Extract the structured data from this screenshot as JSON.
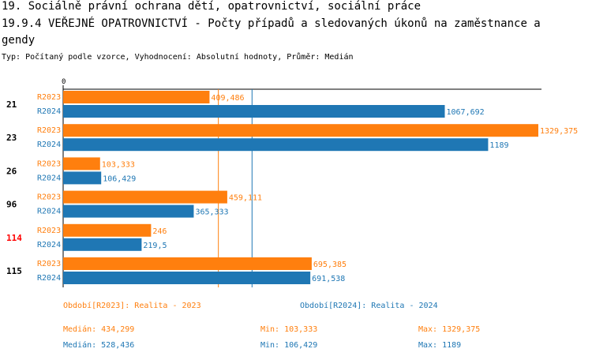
{
  "header": {
    "line1": "19. Sociálně právní ochrana dětí, opatrovnictví, sociální práce",
    "line2": "19.9.4 VEŘEJNÉ OPATROVNICTVÍ - Počty případů a sledovaných úkonů na zaměstnance a",
    "line3": "gendy",
    "subtitle": "Typ: Počítaný podle vzorce, Vyhodnocení: Absolutní hodnoty, Průměr: Medián"
  },
  "colors": {
    "R2023": "#ff7f0e",
    "R2024": "#1f77b4",
    "highlight": "#ff0000"
  },
  "chart_data": {
    "type": "bar",
    "orientation": "horizontal",
    "axis_zero_label": "0",
    "xlim": [
      0,
      1329.375
    ],
    "categories": [
      "21",
      "23",
      "26",
      "96",
      "114",
      "115"
    ],
    "highlighted_category": "114",
    "series": [
      {
        "name": "R2023",
        "values": [
          409.486,
          1329.375,
          103.333,
          459.111,
          246,
          695.385
        ],
        "labels": [
          "409,486",
          "1329,375",
          "103,333",
          "459,111",
          "246",
          "695,385"
        ]
      },
      {
        "name": "R2024",
        "values": [
          1067.692,
          1189,
          106.429,
          365.333,
          219.5,
          691.538
        ],
        "labels": [
          "1067,692",
          "1189",
          "106,429",
          "365,333",
          "219,5",
          "691,538"
        ]
      }
    ],
    "reference_lines": [
      {
        "series": "R2023",
        "stat": "median",
        "value": 434.299
      },
      {
        "series": "R2024",
        "stat": "median",
        "value": 528.436
      }
    ]
  },
  "legend": {
    "r2023": "Období[R2023]: Realita - 2023",
    "r2024": "Období[R2024]: Realita - 2024"
  },
  "stats": {
    "r2023": {
      "median": "Medián: 434,299",
      "min": "Min: 103,333",
      "max": "Max: 1329,375"
    },
    "r2024": {
      "median": "Medián: 528,436",
      "min": "Min: 106,429",
      "max": "Max: 1189"
    }
  }
}
